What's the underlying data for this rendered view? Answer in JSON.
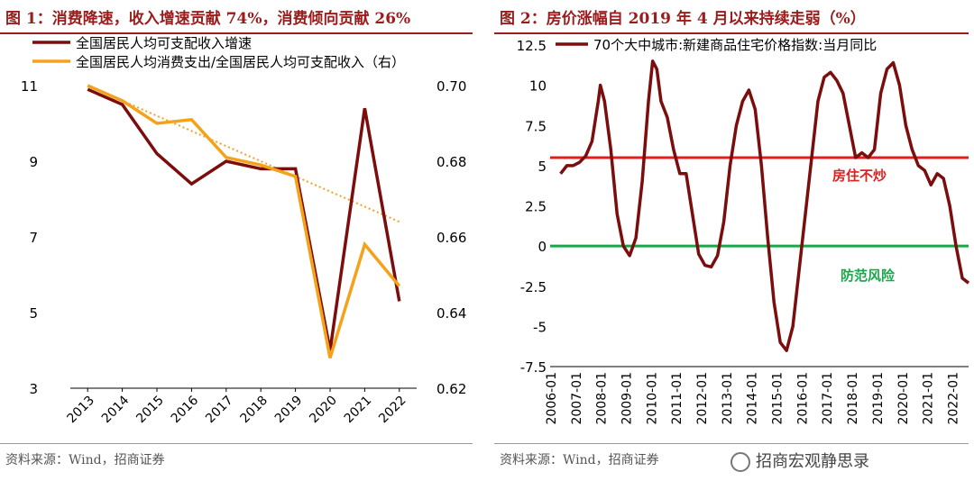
{
  "panel_left": {
    "title": "图 1：消费降速，收入增速贡献 74%，消费倾向贡献 26%",
    "source": "资料来源：Wind，招商证券"
  },
  "panel_right": {
    "title": "图 2：房价涨幅自 2019 年 4 月以来持续走弱（%）",
    "source": "资料来源：Wind，招商证券",
    "watermark": "招商宏观静思录"
  },
  "colors": {
    "income": "#7b0d0d",
    "consumption": "#f5a21b",
    "trend": "#f5a21b",
    "red_line": "#e02020",
    "green_line": "#18a84a",
    "accent": "#9b1c1c"
  },
  "chart_data": [
    {
      "type": "line",
      "categories": [
        "2013",
        "2014",
        "2015",
        "2016",
        "2017",
        "2018",
        "2019",
        "2020",
        "2021",
        "2022"
      ],
      "left_axis": {
        "ylim": [
          3,
          11
        ],
        "ticks": [
          "3",
          "5",
          "7",
          "9",
          "11"
        ]
      },
      "right_axis": {
        "ylim": [
          0.62,
          0.7
        ],
        "ticks": [
          "0.62",
          "0.64",
          "0.66",
          "0.68",
          "0.70"
        ]
      },
      "series": [
        {
          "name": "全国居民人均可支配收入增速",
          "axis": "left",
          "values": [
            10.9,
            10.5,
            9.2,
            8.4,
            9.0,
            8.8,
            8.8,
            4.0,
            10.4,
            5.3
          ]
        },
        {
          "name": "全国居民人均消费支出/全国居民人均可支配收入（右）",
          "axis": "right",
          "values": [
            0.7,
            0.696,
            0.69,
            0.691,
            0.681,
            0.679,
            0.676,
            0.628,
            0.658,
            0.647
          ]
        }
      ],
      "trendline": {
        "series": "全国居民人均消费支出/全国居民人均可支配收入（右）",
        "start": 0.7,
        "end": 0.664
      },
      "legend": "top-left",
      "grid": false
    },
    {
      "type": "line",
      "x_start": "2006-01",
      "x_end": "2022-09",
      "xticks": [
        "2006-01",
        "2007-01",
        "2008-01",
        "2009-01",
        "2010-01",
        "2011-01",
        "2012-01",
        "2013-01",
        "2014-01",
        "2015-01",
        "2016-01",
        "2017-01",
        "2018-01",
        "2019-01",
        "2020-01",
        "2021-01",
        "2022-01"
      ],
      "ylim": [
        -7.5,
        12.5
      ],
      "yticks": [
        "12.5",
        "10",
        "7.5",
        "5",
        "2.5",
        "0",
        "-2.5",
        "-5",
        "-7.5"
      ],
      "series": [
        {
          "name": "70个大中城市:新建商品住宅价格指数:当月同比",
          "x": [
            "2006-06",
            "2006-09",
            "2006-12",
            "2007-03",
            "2007-06",
            "2007-09",
            "2007-12",
            "2008-01",
            "2008-03",
            "2008-06",
            "2008-09",
            "2008-12",
            "2009-03",
            "2009-06",
            "2009-09",
            "2009-12",
            "2010-02",
            "2010-04",
            "2010-06",
            "2010-09",
            "2010-12",
            "2011-03",
            "2011-06",
            "2011-09",
            "2011-12",
            "2012-03",
            "2012-06",
            "2012-09",
            "2012-12",
            "2013-03",
            "2013-06",
            "2013-09",
            "2013-12",
            "2014-03",
            "2014-06",
            "2014-09",
            "2014-12",
            "2015-03",
            "2015-06",
            "2015-09",
            "2015-12",
            "2016-03",
            "2016-06",
            "2016-09",
            "2016-12",
            "2017-03",
            "2017-06",
            "2017-09",
            "2017-12",
            "2018-03",
            "2018-06",
            "2018-09",
            "2018-12",
            "2019-03",
            "2019-06",
            "2019-09",
            "2019-12",
            "2020-03",
            "2020-06",
            "2020-09",
            "2020-12",
            "2021-03",
            "2021-06",
            "2021-09",
            "2021-12",
            "2022-03",
            "2022-06",
            "2022-09"
          ],
          "values": [
            4.5,
            5.0,
            5.0,
            5.2,
            5.6,
            6.5,
            9.0,
            10.0,
            9.0,
            6.0,
            2.0,
            0.0,
            -0.6,
            0.5,
            4.0,
            9.0,
            11.5,
            11.0,
            9.0,
            8.0,
            6.0,
            4.5,
            4.5,
            2.0,
            -0.5,
            -1.2,
            -1.3,
            -0.6,
            1.5,
            5.0,
            7.5,
            9.0,
            9.7,
            8.5,
            5.0,
            0.5,
            -3.5,
            -6.0,
            -6.5,
            -5.0,
            -1.5,
            2.0,
            5.5,
            9.0,
            10.5,
            10.8,
            10.3,
            9.5,
            7.5,
            5.5,
            5.8,
            5.5,
            6.0,
            9.5,
            11.0,
            11.4,
            10.0,
            7.5,
            6.0,
            5.0,
            4.7,
            3.8,
            4.5,
            4.2,
            2.5,
            0.0,
            -2.0,
            -2.3
          ]
        }
      ],
      "reference_lines": [
        {
          "y": 5.5,
          "label": "房住不炒",
          "color": "#e02020"
        },
        {
          "y": 0,
          "label": "防范风险",
          "color": "#18a84a"
        }
      ],
      "legend": "top",
      "grid": false
    }
  ]
}
